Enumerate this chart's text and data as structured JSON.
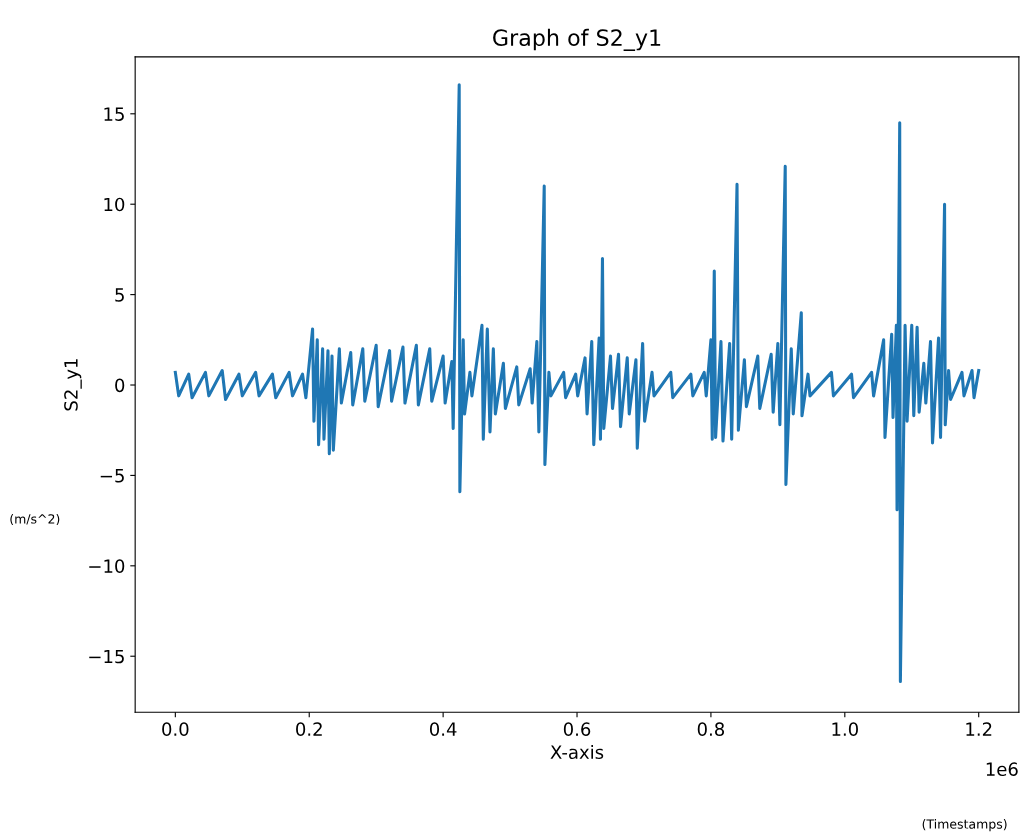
{
  "chart_data": {
    "type": "line",
    "title": "Graph of S2_y1",
    "xlabel": "X-axis",
    "ylabel": "S2_y1",
    "annotations": [
      "(m/s^2)",
      "(Timestamps)",
      "1e6"
    ],
    "x": [
      0,
      0.005,
      0.02,
      0.025,
      0.045,
      0.05,
      0.07,
      0.075,
      0.095,
      0.1,
      0.12,
      0.125,
      0.145,
      0.15,
      0.17,
      0.175,
      0.19,
      0.195,
      0.205,
      0.207,
      0.212,
      0.214,
      0.22,
      0.222,
      0.228,
      0.23,
      0.234,
      0.236,
      0.245,
      0.248,
      0.262,
      0.265,
      0.28,
      0.283,
      0.3,
      0.303,
      0.32,
      0.323,
      0.34,
      0.343,
      0.36,
      0.363,
      0.38,
      0.383,
      0.4,
      0.403,
      0.413,
      0.415,
      0.424,
      0.425,
      0.43,
      0.432,
      0.44,
      0.443,
      0.458,
      0.46,
      0.466,
      0.47,
      0.475,
      0.478,
      0.49,
      0.493,
      0.51,
      0.513,
      0.53,
      0.533,
      0.54,
      0.543,
      0.551,
      0.552,
      0.558,
      0.561,
      0.58,
      0.583,
      0.598,
      0.601,
      0.612,
      0.615,
      0.622,
      0.625,
      0.633,
      0.635,
      0.638,
      0.64,
      0.65,
      0.653,
      0.662,
      0.665,
      0.675,
      0.678,
      0.688,
      0.69,
      0.698,
      0.701,
      0.712,
      0.715,
      0.74,
      0.743,
      0.77,
      0.773,
      0.79,
      0.793,
      0.8,
      0.802,
      0.805,
      0.807,
      0.815,
      0.818,
      0.828,
      0.831,
      0.839,
      0.841,
      0.85,
      0.853,
      0.87,
      0.873,
      0.89,
      0.893,
      0.9,
      0.903,
      0.911,
      0.912,
      0.92,
      0.923,
      0.935,
      0.936,
      0.945,
      0.948,
      0.98,
      0.983,
      1.01,
      1.013,
      1.04,
      1.043,
      1.058,
      1.06,
      1.07,
      1.072,
      1.077,
      1.078,
      1.082,
      1.083,
      1.09,
      1.093,
      1.1,
      1.103,
      1.108,
      1.111,
      1.118,
      1.121,
      1.128,
      1.131,
      1.14,
      1.143,
      1.149,
      1.15,
      1.155,
      1.158,
      1.175,
      1.178,
      1.19,
      1.193,
      1.2
    ],
    "series": [
      {
        "color": "#1f77b4",
        "values": [
          0.7,
          -0.6,
          0.6,
          -0.7,
          0.7,
          -0.6,
          0.8,
          -0.8,
          0.6,
          -0.6,
          0.7,
          -0.6,
          0.6,
          -0.7,
          0.7,
          -0.6,
          0.6,
          -0.7,
          3.1,
          -2.0,
          2.5,
          -3.3,
          2.0,
          -3.0,
          1.9,
          -3.8,
          1.6,
          -3.6,
          2.0,
          -1.0,
          1.8,
          -1.1,
          2.0,
          -0.9,
          2.2,
          -1.2,
          1.9,
          -0.9,
          2.1,
          -1.0,
          2.2,
          -1.1,
          2.0,
          -0.9,
          1.6,
          -1.0,
          1.3,
          -2.4,
          16.6,
          -5.9,
          2.5,
          -1.6,
          0.7,
          -0.6,
          3.3,
          -3.0,
          3.1,
          -2.6,
          2.0,
          -1.6,
          1.2,
          -1.3,
          1.0,
          -1.1,
          0.9,
          -1.0,
          2.4,
          -2.6,
          11.0,
          -4.4,
          0.7,
          -0.6,
          0.7,
          -0.7,
          0.6,
          -0.6,
          1.5,
          -1.6,
          2.4,
          -3.3,
          2.6,
          -3.0,
          7.0,
          -2.4,
          1.6,
          -1.3,
          1.7,
          -2.3,
          1.5,
          -1.6,
          1.4,
          -3.5,
          2.3,
          -2.0,
          0.7,
          -0.6,
          0.7,
          -0.7,
          0.6,
          -0.6,
          0.7,
          -0.6,
          2.5,
          -3.0,
          6.3,
          -2.9,
          2.4,
          -3.1,
          2.3,
          -3.0,
          11.1,
          -2.5,
          1.4,
          -1.2,
          1.6,
          -1.3,
          1.7,
          -1.5,
          2.3,
          -2.2,
          12.1,
          -5.5,
          2.0,
          -1.6,
          4.0,
          -1.7,
          0.6,
          -0.6,
          0.7,
          -0.6,
          0.6,
          -0.7,
          0.7,
          -0.6,
          2.5,
          -2.9,
          2.8,
          -1.8,
          3.3,
          -6.9,
          14.5,
          -16.4,
          3.3,
          -2.0,
          3.3,
          -1.7,
          3.2,
          -1.5,
          1.2,
          -1.0,
          2.4,
          -3.2,
          2.6,
          -2.9,
          10.0,
          -2.2,
          0.8,
          -0.8,
          0.7,
          -0.6,
          0.8,
          -0.7,
          0.8
        ]
      }
    ],
    "xlim": [
      -0.06,
      1.26
    ],
    "xticks": [
      {
        "value": 0,
        "label": "0.0"
      },
      0.2,
      0.4,
      0.6,
      0.8,
      {
        "value": 1,
        "label": "1.0"
      },
      1.2
    ],
    "ylim": [
      -18.1,
      18.15
    ],
    "yticks": [
      {
        "value": -15,
        "label": "−15"
      },
      {
        "value": -10,
        "label": "−10"
      },
      {
        "value": -5,
        "label": "−5"
      },
      0,
      5,
      10,
      15
    ],
    "grid": false,
    "legend": false,
    "line_style": "solid",
    "marker": "none"
  }
}
